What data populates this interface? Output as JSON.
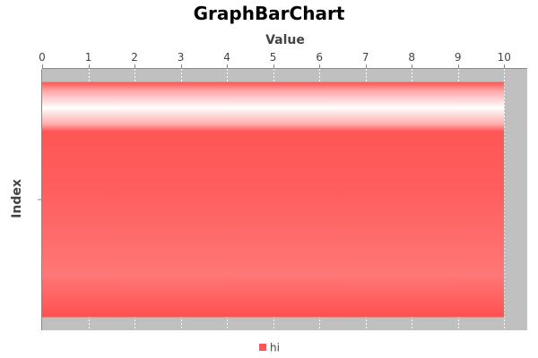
{
  "chart_data": {
    "type": "bar",
    "orientation": "horizontal",
    "title": "GraphBarChart",
    "xlabel": "Value",
    "ylabel": "Index",
    "xaxis_position": "top",
    "xlim": [
      0,
      10.5
    ],
    "xticks": [
      "0",
      "1",
      "2",
      "3",
      "4",
      "5",
      "6",
      "7",
      "8",
      "9",
      "10"
    ],
    "categories": [
      ""
    ],
    "series": [
      {
        "name": "hi",
        "values": [
          10
        ],
        "color": "#ff5555"
      }
    ],
    "grid": true,
    "legend_position": "bottom",
    "plot_background": "#c0c0c0"
  }
}
